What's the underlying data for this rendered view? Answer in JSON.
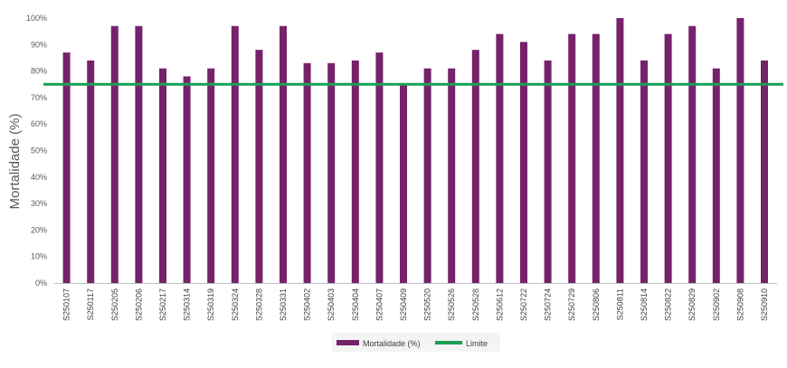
{
  "chart_data": {
    "type": "bar",
    "title": "",
    "xlabel": "",
    "ylabel": "Mortalidade (%)",
    "ylim": [
      0,
      100
    ],
    "yticks": [
      0,
      10,
      20,
      30,
      40,
      50,
      60,
      70,
      80,
      90,
      100
    ],
    "ytick_suffix": "%",
    "categories": [
      "S250107",
      "S250117",
      "S250205",
      "S250206",
      "S250217",
      "S250314",
      "S250319",
      "S250324",
      "S250328",
      "S250331",
      "S250402",
      "S250403",
      "S250404",
      "S250407",
      "S250409",
      "S250520",
      "S250526",
      "S250528",
      "S250612",
      "S250722",
      "S250724",
      "S250729",
      "S250806",
      "S250811",
      "S250814",
      "S250822",
      "S250829",
      "S250902",
      "S250908",
      "S250910"
    ],
    "series": [
      {
        "name": "Mortalidade (%)",
        "type": "bar",
        "color": "#76226b",
        "values": [
          87,
          84,
          97,
          97,
          81,
          78,
          81,
          97,
          88,
          97,
          83,
          83,
          84,
          87,
          75,
          81,
          81,
          88,
          94,
          91,
          84,
          94,
          94,
          100,
          84,
          94,
          97,
          81,
          100,
          84
        ]
      },
      {
        "name": "Limite",
        "type": "line",
        "color": "#1aa055",
        "value": 75
      }
    ],
    "legend": [
      "Mortalidade (%)",
      "Limite"
    ],
    "legend_position": "bottom-center",
    "grid": false
  }
}
